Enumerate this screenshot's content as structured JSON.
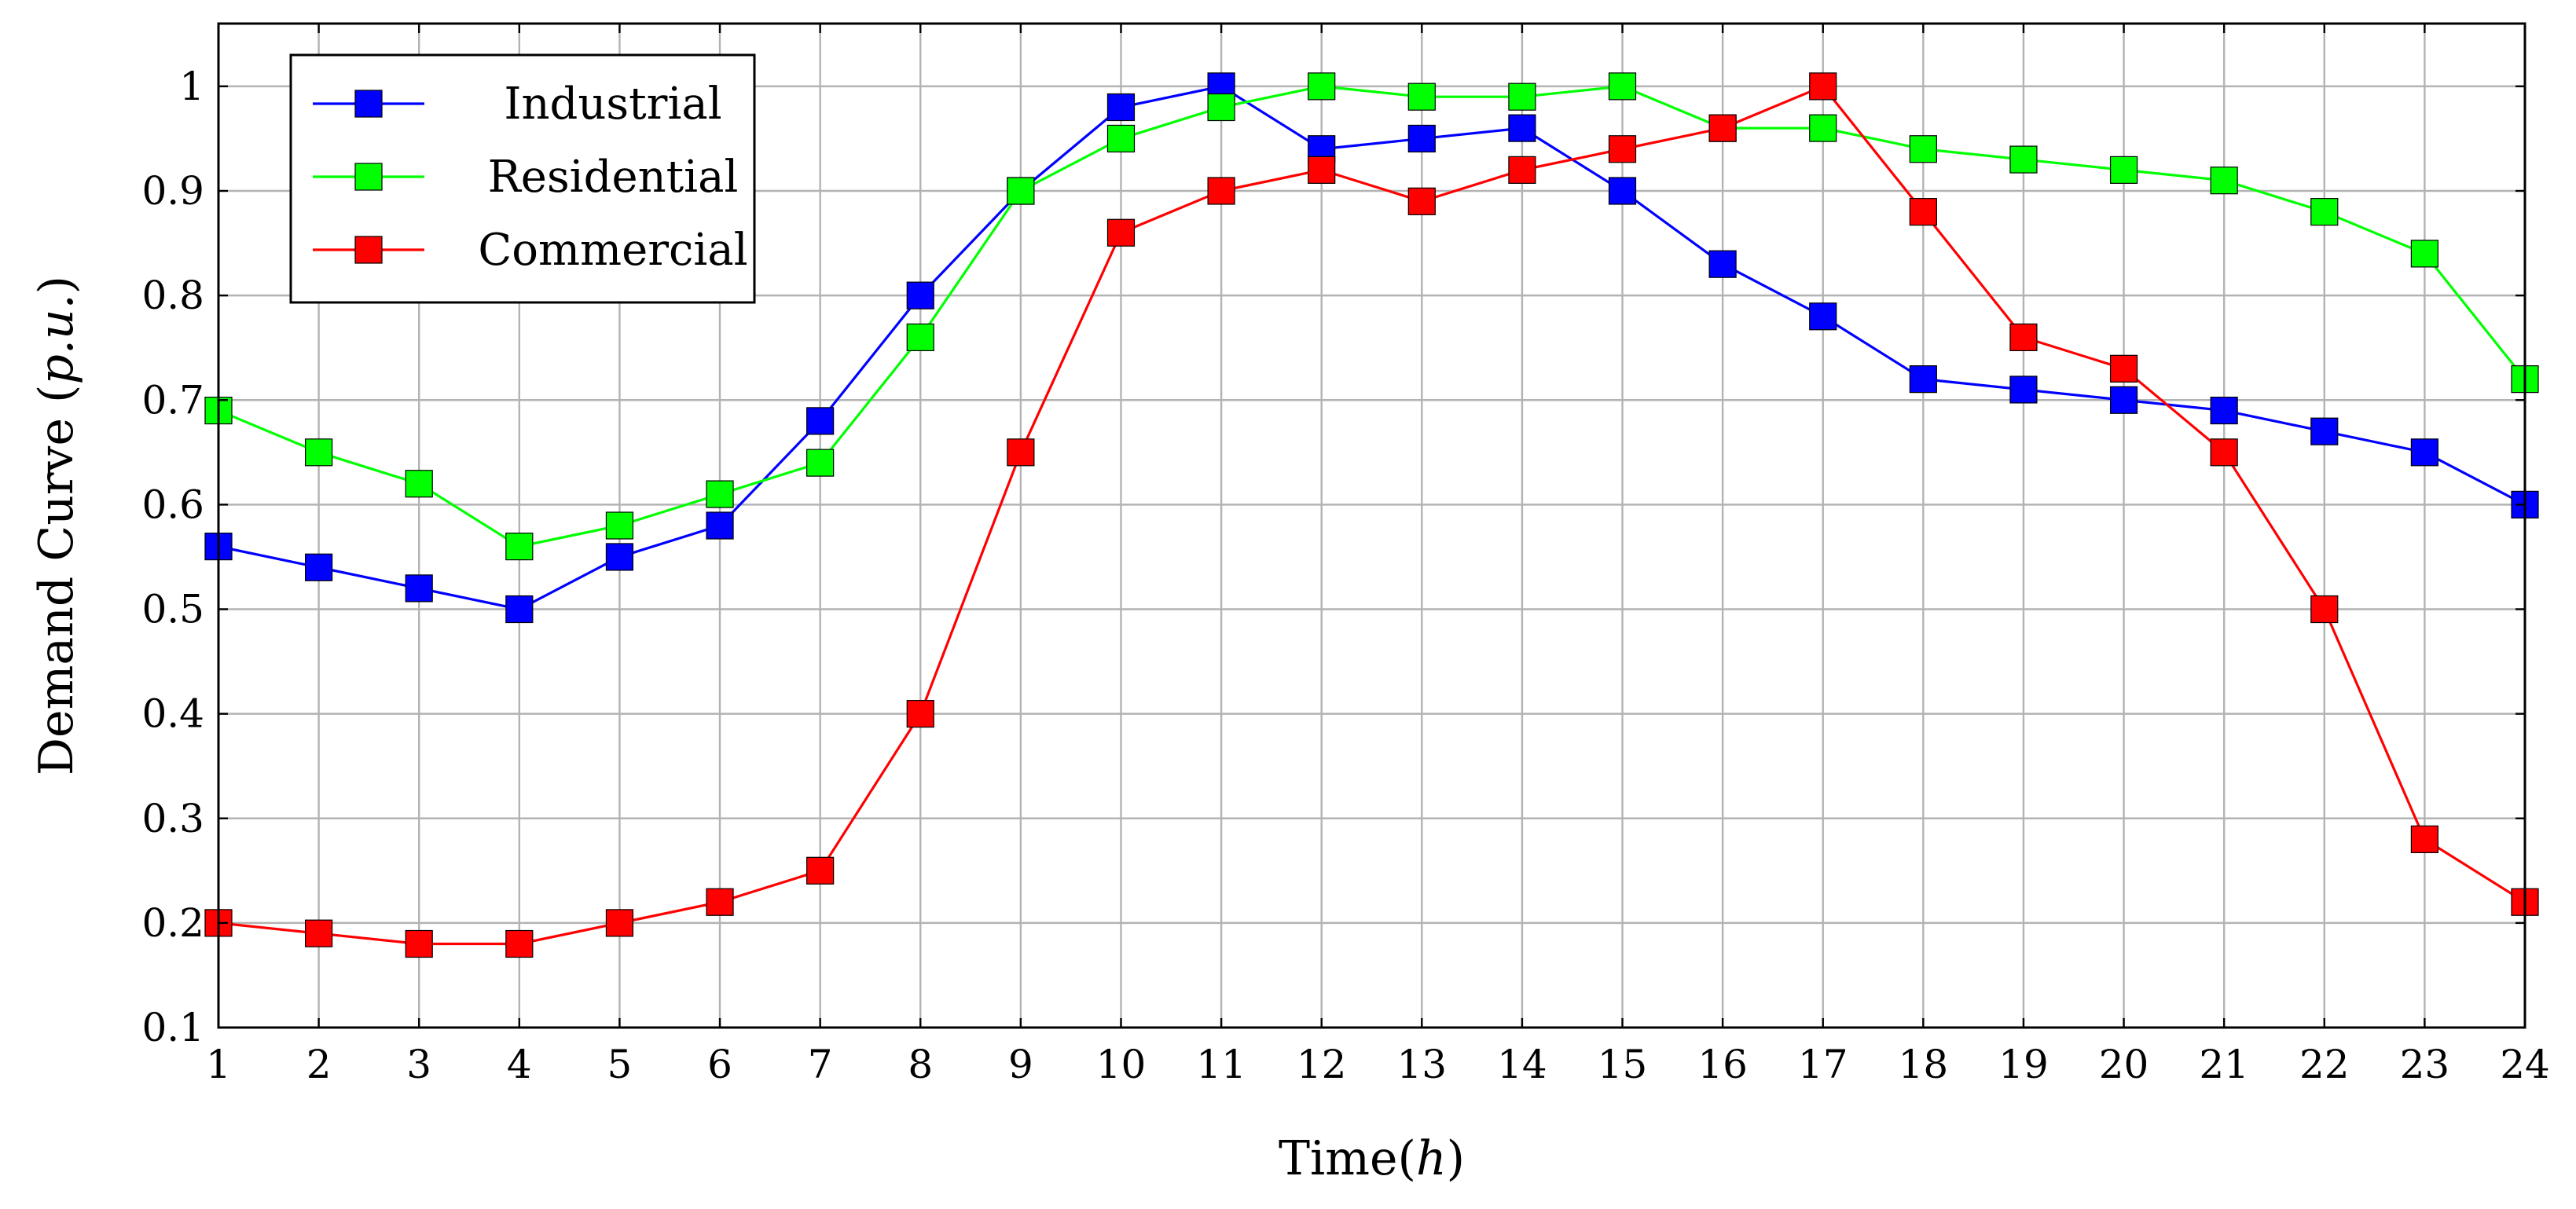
{
  "chart_data": {
    "type": "line",
    "title": "",
    "xlabel": "Time(h)",
    "xlabel_parts": {
      "main": "Time(",
      "unit": "h",
      "close": ")"
    },
    "ylabel": "Demand Curve (p.u.)",
    "ylabel_parts": {
      "main": "Demand Curve (",
      "unit": "p.u.",
      "close": ")"
    },
    "x": [
      1,
      2,
      3,
      4,
      5,
      6,
      7,
      8,
      9,
      10,
      11,
      12,
      13,
      14,
      15,
      16,
      17,
      18,
      19,
      20,
      21,
      22,
      23,
      24
    ],
    "xlim": [
      1,
      24
    ],
    "ylim": [
      0.1,
      1.06
    ],
    "yticks": [
      0.1,
      0.2,
      0.3,
      0.4,
      0.5,
      0.6,
      0.7,
      0.8,
      0.9,
      1
    ],
    "ytick_labels": [
      "0.1",
      "0.2",
      "0.3",
      "0.4",
      "0.5",
      "0.6",
      "0.7",
      "0.8",
      "0.9",
      "1"
    ],
    "grid": true,
    "legend_position": "top-left",
    "series": [
      {
        "name": "Industrial",
        "color": "#0000ff",
        "marker": "square",
        "values": [
          0.56,
          0.54,
          0.52,
          0.5,
          0.55,
          0.58,
          0.68,
          0.8,
          0.9,
          0.98,
          1.0,
          0.94,
          0.95,
          0.96,
          0.9,
          0.83,
          0.78,
          0.72,
          0.71,
          0.7,
          0.69,
          0.67,
          0.65,
          0.6
        ]
      },
      {
        "name": "Residential",
        "color": "#00ff00",
        "marker": "square",
        "values": [
          0.69,
          0.65,
          0.62,
          0.56,
          0.58,
          0.61,
          0.64,
          0.76,
          0.9,
          0.95,
          0.98,
          1.0,
          0.99,
          0.99,
          1.0,
          0.96,
          0.96,
          0.94,
          0.93,
          0.92,
          0.91,
          0.88,
          0.84,
          0.72
        ]
      },
      {
        "name": "Commercial",
        "color": "#ff0000",
        "marker": "square",
        "values": [
          0.2,
          0.19,
          0.18,
          0.18,
          0.2,
          0.22,
          0.25,
          0.4,
          0.65,
          0.86,
          0.9,
          0.92,
          0.89,
          0.92,
          0.94,
          0.96,
          1.0,
          0.88,
          0.76,
          0.73,
          0.65,
          0.5,
          0.28,
          0.22
        ]
      }
    ]
  }
}
